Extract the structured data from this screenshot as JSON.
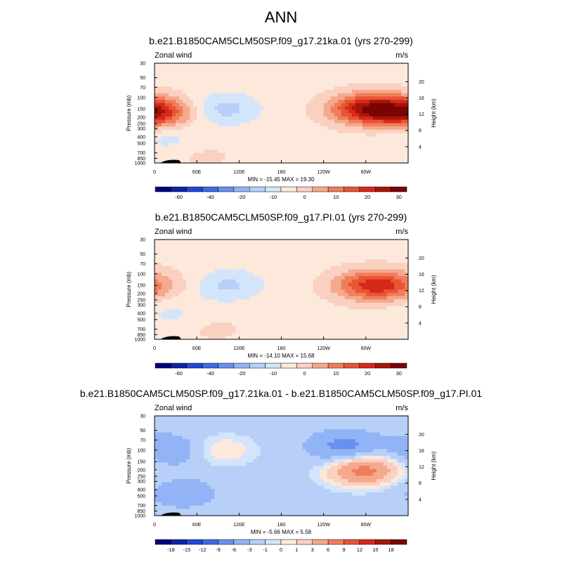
{
  "figure_title": "ANN",
  "chart_data": [
    {
      "type": "heatmap",
      "title": "b.e21.B1850CAM5CLM50SP.f09_g17.21ka.01 (yrs 270-299)",
      "variable_label": "Zonal wind",
      "units_label": "m/s",
      "ylabel": "Pressure (mb)",
      "ylabel_right": "Height (km)",
      "x_ticks": [
        "0",
        "60E",
        "120E",
        "180",
        "120W",
        "60W"
      ],
      "x_tick_values": [
        0,
        60,
        120,
        180,
        240,
        300
      ],
      "xlim": [
        0,
        360
      ],
      "pressure_ticks": [
        "30",
        "50",
        "70",
        "100",
        "150",
        "200",
        "250",
        "300",
        "400",
        "500",
        "700",
        "850",
        "1000"
      ],
      "height_ticks": [
        "4",
        "8",
        "12",
        "16",
        "20"
      ],
      "stats_text": "MIN = -15.45  MAX =  19.30",
      "min": -15.45,
      "max": 19.3,
      "colorbar_labels": [
        "-60",
        "-40",
        "-20",
        "-10",
        "0",
        "10",
        "20",
        "30"
      ],
      "colorbar_label_bounds": [
        1.5,
        3.5,
        5.5,
        7.5,
        9.5,
        11.5,
        13.5,
        15.5
      ],
      "features": [
        {
          "name": "jet-west",
          "lon": 0,
          "p": 170,
          "value": 10
        },
        {
          "name": "jet-west-core",
          "lon": 8,
          "p": 170,
          "value": 14
        },
        {
          "name": "neg-120E",
          "lon": 100,
          "p": 150,
          "value": -10
        },
        {
          "name": "jet-east",
          "lon": 285,
          "p": 150,
          "value": 15
        },
        {
          "name": "jet-east-core",
          "lon": 318,
          "p": 150,
          "value": 19.3
        },
        {
          "name": "low-level-pos",
          "lon": 70,
          "p": 800,
          "value": 3
        },
        {
          "name": "low-level-neg",
          "lon": 20,
          "p": 400,
          "value": -5
        }
      ]
    },
    {
      "type": "heatmap",
      "title": "b.e21.B1850CAM5CLM50SP.f09_g17.PI.01 (yrs 270-299)",
      "variable_label": "Zonal wind",
      "units_label": "m/s",
      "ylabel": "Pressure (mb)",
      "ylabel_right": "Height (km)",
      "x_ticks": [
        "0",
        "60E",
        "120E",
        "180",
        "120W",
        "60W"
      ],
      "x_tick_values": [
        0,
        60,
        120,
        180,
        240,
        300
      ],
      "xlim": [
        0,
        360
      ],
      "pressure_ticks": [
        "30",
        "50",
        "70",
        "100",
        "150",
        "200",
        "250",
        "300",
        "400",
        "500",
        "700",
        "850",
        "1000"
      ],
      "height_ticks": [
        "4",
        "8",
        "12",
        "16",
        "20"
      ],
      "stats_text": "MIN = -14.10  MAX =  15.68",
      "min": -14.1,
      "max": 15.68,
      "colorbar_labels": [
        "-60",
        "-40",
        "-20",
        "-10",
        "0",
        "10",
        "20",
        "30"
      ],
      "colorbar_label_bounds": [
        1.5,
        3.5,
        5.5,
        7.5,
        9.5,
        11.5,
        13.5,
        15.5
      ],
      "features": [
        {
          "name": "jet-west",
          "lon": 5,
          "p": 150,
          "value": 5
        },
        {
          "name": "neg-120E",
          "lon": 105,
          "p": 150,
          "value": -9
        },
        {
          "name": "jet-east",
          "lon": 290,
          "p": 150,
          "value": 12
        },
        {
          "name": "jet-east-core",
          "lon": 325,
          "p": 150,
          "value": 15.68
        },
        {
          "name": "low-level-pos",
          "lon": 85,
          "p": 700,
          "value": 3
        },
        {
          "name": "low-level-neg",
          "lon": 25,
          "p": 400,
          "value": -4
        }
      ]
    },
    {
      "type": "heatmap",
      "title": "b.e21.B1850CAM5CLM50SP.f09_g17.21ka.01 - b.e21.B1850CAM5CLM50SP.f09_g17.PI.01",
      "variable_label": "Zonal wind",
      "units_label": "m/s",
      "ylabel": "Pressure (mb)",
      "ylabel_right": "Height (km)",
      "x_ticks": [
        "0",
        "60E",
        "120E",
        "180",
        "120W",
        "60W"
      ],
      "x_tick_values": [
        0,
        60,
        120,
        180,
        240,
        300
      ],
      "xlim": [
        0,
        360
      ],
      "pressure_ticks": [
        "30",
        "50",
        "70",
        "100",
        "150",
        "200",
        "250",
        "300",
        "400",
        "500",
        "700",
        "850",
        "1000"
      ],
      "height_ticks": [
        "4",
        "8",
        "12",
        "16",
        "20"
      ],
      "stats_text": "MIN = -5.66  MAX =  5.58",
      "min": -5.66,
      "max": 5.58,
      "colorbar_labels": [
        "-18",
        "-15",
        "-12",
        "-9",
        "-6",
        "-3",
        "-1",
        "0",
        "1",
        "3",
        "6",
        "9",
        "12",
        "15",
        "18"
      ],
      "colorbar_label_bounds": [
        1,
        2,
        3,
        4,
        5,
        6,
        7,
        8,
        9,
        10,
        11,
        12,
        13,
        14,
        15
      ],
      "features": [
        {
          "name": "neg-upper-west",
          "lon": 20,
          "p": 100,
          "value": -4
        },
        {
          "name": "pos-upper-90E",
          "lon": 95,
          "p": 100,
          "value": 3
        },
        {
          "name": "neg-upper-east",
          "lon": 270,
          "p": 90,
          "value": -5.66
        },
        {
          "name": "pos-jet-east",
          "lon": 285,
          "p": 220,
          "value": 4
        },
        {
          "name": "pos-jet-east-core",
          "lon": 305,
          "p": 190,
          "value": 5.58
        },
        {
          "name": "neg-low",
          "lon": 40,
          "p": 450,
          "value": -3
        }
      ]
    }
  ],
  "colorbar_colors": [
    "#00007f",
    "#0d22a5",
    "#1f48d6",
    "#3d6ae6",
    "#6790f0",
    "#92b4f6",
    "#b8cff8",
    "#d3e5fb",
    "#fde8dc",
    "#fad0c0",
    "#f5a98c",
    "#f17d5a",
    "#e95432",
    "#d5291b",
    "#a81508",
    "#7a0403"
  ]
}
